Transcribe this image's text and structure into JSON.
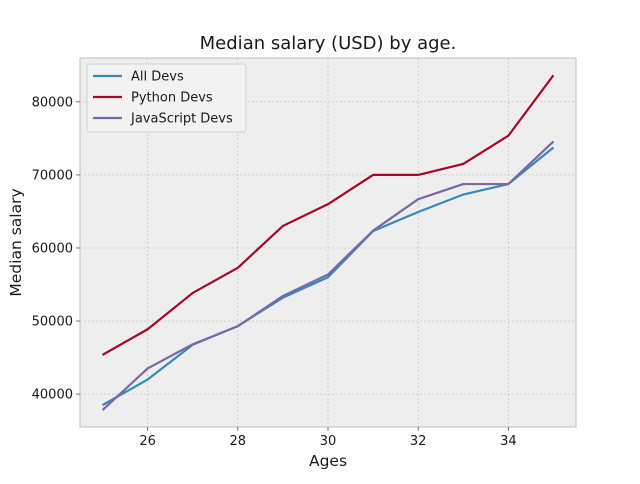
{
  "chart_data": {
    "type": "line",
    "title": "Median salary (USD) by age.",
    "xlabel": "Ages",
    "ylabel": "Median salary",
    "x": [
      25,
      26,
      27,
      28,
      29,
      30,
      31,
      32,
      33,
      34,
      35
    ],
    "xlim": [
      24.5,
      35.5
    ],
    "ylim": [
      35500,
      86000
    ],
    "xticks": [
      26,
      28,
      30,
      32,
      34
    ],
    "yticks": [
      40000,
      50000,
      60000,
      70000,
      80000
    ],
    "grid": true,
    "legend_position": "top-left",
    "series": [
      {
        "name": "All Devs",
        "color": "#348ABD",
        "values": [
          38496,
          42000,
          46752,
          49320,
          53200,
          56000,
          62316,
          64928,
          67317,
          68748,
          73752
        ]
      },
      {
        "name": "Python Devs",
        "color": "#A60628",
        "values": [
          45372,
          48876,
          53850,
          57287,
          63016,
          65998,
          70003,
          70000,
          71496,
          75370,
          83640
        ]
      },
      {
        "name": "JavaScript Devs",
        "color": "#7A68A6",
        "values": [
          37810,
          43515,
          46823,
          49293,
          53437,
          56373,
          62375,
          66674,
          68745,
          68746,
          74583
        ]
      }
    ]
  }
}
